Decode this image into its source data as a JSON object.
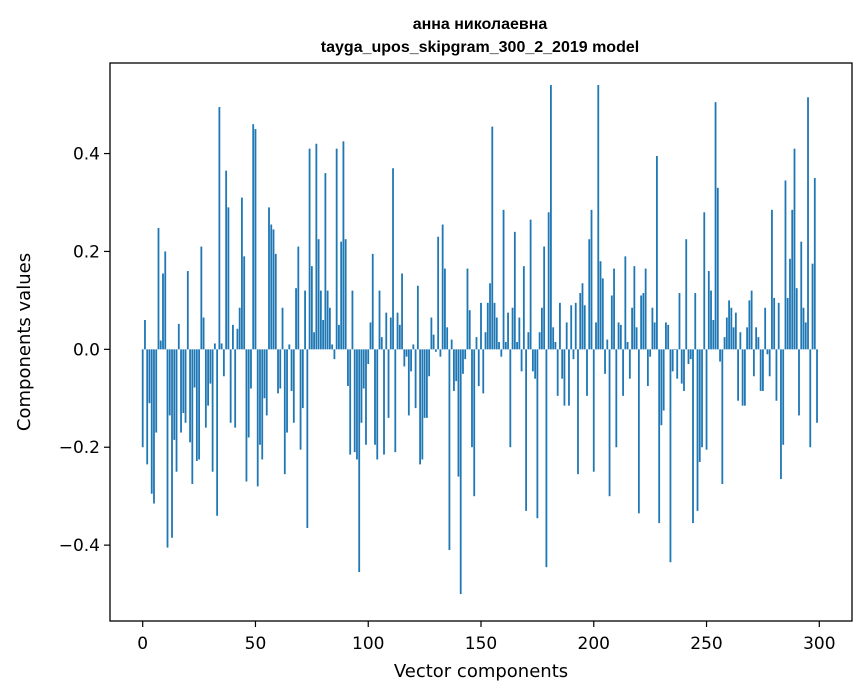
{
  "chart_data": {
    "type": "bar",
    "title": "анна николаевна",
    "subtitle": "tayga_upos_skipgram_300_2_2019 model",
    "xlabel": "Vector components",
    "ylabel": "Components values",
    "xlim": [
      -14.5,
      314.5
    ],
    "ylim": [
      -0.555,
      0.585
    ],
    "xticks": [
      0,
      50,
      100,
      150,
      200,
      250,
      300
    ],
    "yticks": [
      -0.4,
      -0.2,
      0.0,
      0.2,
      0.4
    ],
    "ytick_labels": [
      "−0.4",
      "−0.2",
      "0.0",
      "0.2",
      "0.4"
    ],
    "grid": false,
    "bar_color": "#1f77b4",
    "values": [
      -0.2,
      0.06,
      -0.235,
      -0.11,
      -0.295,
      -0.315,
      -0.17,
      0.248,
      0.018,
      0.155,
      0.2,
      -0.405,
      -0.135,
      -0.385,
      -0.185,
      -0.25,
      0.052,
      -0.17,
      -0.13,
      -0.15,
      0.16,
      -0.19,
      -0.275,
      -0.078,
      -0.228,
      -0.225,
      0.21,
      0.065,
      -0.16,
      -0.115,
      -0.07,
      -0.25,
      0.012,
      -0.34,
      0.495,
      0.012,
      -0.055,
      0.365,
      0.29,
      -0.15,
      0.05,
      -0.16,
      0.042,
      0.085,
      0.31,
      0.19,
      -0.27,
      -0.18,
      -0.08,
      0.46,
      0.45,
      -0.28,
      -0.195,
      -0.225,
      -0.1,
      -0.135,
      0.29,
      0.255,
      0.245,
      0.195,
      -0.09,
      -0.08,
      0.085,
      -0.255,
      -0.17,
      0.01,
      -0.085,
      -0.15,
      0.125,
      0.21,
      -0.205,
      -0.12,
      0.12,
      -0.365,
      0.41,
      0.17,
      0.035,
      0.42,
      0.225,
      0.12,
      0.06,
      0.36,
      0.12,
      0.085,
      0.01,
      -0.02,
      0.41,
      0.05,
      0.22,
      0.425,
      0.225,
      -0.075,
      -0.215,
      0.12,
      -0.21,
      -0.225,
      -0.455,
      -0.15,
      -0.08,
      -0.195,
      -0.03,
      0.055,
      0.195,
      -0.195,
      -0.225,
      0.12,
      0.025,
      -0.215,
      0.075,
      -0.14,
      0.065,
      0.37,
      -0.21,
      0.075,
      0.05,
      0.155,
      -0.035,
      -0.015,
      -0.135,
      -0.045,
      0.01,
      -0.12,
      0.13,
      -0.235,
      -0.225,
      -0.14,
      -0.14,
      -0.055,
      0.065,
      0.03,
      -0.005,
      0.23,
      -0.015,
      0.255,
      0.165,
      0.045,
      -0.41,
      0.02,
      -0.085,
      -0.065,
      -0.26,
      -0.5,
      -0.05,
      -0.02,
      0.165,
      0.08,
      -0.2,
      -0.3,
      0.025,
      -0.075,
      0.095,
      -0.09,
      0.035,
      0.095,
      0.135,
      0.455,
      0.095,
      0.065,
      0.015,
      -0.015,
      0.285,
      0.015,
      0.075,
      -0.2,
      0.085,
      0.24,
      0.015,
      0.065,
      -0.045,
      0.17,
      -0.33,
      0.035,
      0.265,
      -0.045,
      -0.06,
      -0.345,
      0.035,
      0.085,
      0.21,
      -0.445,
      0.28,
      0.54,
      0.045,
      0.015,
      -0.095,
      0.095,
      -0.06,
      -0.115,
      0.055,
      -0.115,
      0.09,
      -0.02,
      0.095,
      -0.255,
      0.115,
      0.135,
      0.09,
      -0.095,
      0.225,
      0.285,
      -0.25,
      0.055,
      0.54,
      0.18,
      0.145,
      -0.05,
      0.02,
      -0.3,
      0.11,
      0.165,
      -0.2,
      0.055,
      0.05,
      -0.095,
      0.19,
      0.015,
      -0.06,
      0.085,
      0.17,
      0.045,
      -0.335,
      0.11,
      0.115,
      0.165,
      -0.075,
      -0.015,
      0.085,
      0.055,
      0.395,
      -0.355,
      -0.155,
      -0.125,
      0.055,
      0.05,
      -0.435,
      -0.045,
      0.0,
      -0.06,
      0.115,
      -0.07,
      -0.085,
      0.225,
      -0.03,
      -0.02,
      -0.355,
      0.115,
      -0.33,
      -0.23,
      -0.2,
      0.28,
      -0.205,
      0.16,
      0.12,
      0.06,
      0.505,
      0.33,
      -0.025,
      -0.275,
      0.025,
      0.065,
      0.1,
      0.085,
      0.045,
      0.075,
      -0.105,
      0.035,
      -0.115,
      -0.115,
      0.045,
      0.1,
      0.12,
      -0.055,
      0.045,
      0.025,
      -0.085,
      -0.085,
      0.085,
      -0.01,
      -0.055,
      0.285,
      0.105,
      -0.105,
      0.095,
      -0.265,
      -0.195,
      0.345,
      0.105,
      0.185,
      0.285,
      0.41,
      0.125,
      -0.135,
      0.22,
      0.085,
      0.055,
      0.515,
      -0.2,
      0.175,
      0.35,
      -0.15
    ]
  }
}
